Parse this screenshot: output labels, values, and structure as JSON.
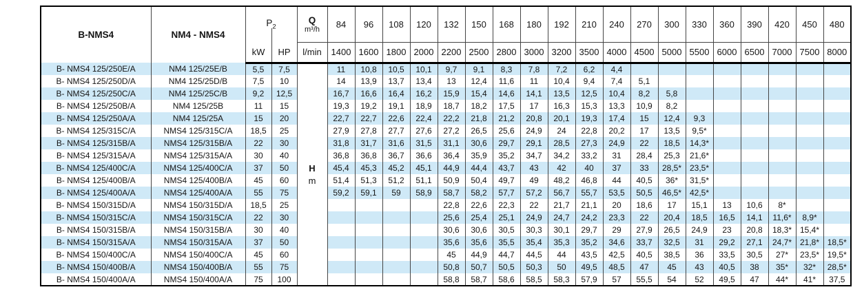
{
  "colors": {
    "stripe_blue": "#cfe9f7",
    "grid_line": "#444444",
    "heavy_line": "#000000"
  },
  "table": {
    "col1_header": "B-NMS4",
    "col2_header": "NM4 - NMS4",
    "p2": {
      "main": "P",
      "sub": "2"
    },
    "kw_label": "kW",
    "hp_label": "HP",
    "q_label": "Q",
    "q_unit": "m³/h",
    "lmin_label": "l/min",
    "h_label": "H",
    "m_label": "m",
    "flow_m3h": [
      "84",
      "96",
      "108",
      "120",
      "132",
      "150",
      "168",
      "180",
      "192",
      "210",
      "240",
      "270",
      "300",
      "330",
      "360",
      "390",
      "420",
      "450",
      "480"
    ],
    "flow_lmin": [
      "1400",
      "1600",
      "1800",
      "2000",
      "2200",
      "2500",
      "2800",
      "3000",
      "3200",
      "3500",
      "4000",
      "4500",
      "5000",
      "5500",
      "6000",
      "6500",
      "7000",
      "7500",
      "8000"
    ],
    "rows": [
      {
        "bnms4": "B- NMS4 125/250E/A",
        "nm4": "NM4 125/25E/B",
        "kw": "5,5",
        "hp": "7,5",
        "lmin": "",
        "values": [
          "11",
          "10,8",
          "10,5",
          "10,1",
          "9,7",
          "9,1",
          "8,3",
          "7,8",
          "7,2",
          "6,2",
          "4,4",
          "",
          "",
          "",
          "",
          "",
          "",
          "",
          ""
        ]
      },
      {
        "bnms4": "B- NMS4 125/250D/A",
        "nm4": "NM4 125/25D/B",
        "kw": "7,5",
        "hp": "10",
        "lmin": "",
        "values": [
          "14",
          "13,9",
          "13,7",
          "13,4",
          "13",
          "12,4",
          "11,6",
          "11",
          "10,4",
          "9,4",
          "7,4",
          "5,1",
          "",
          "",
          "",
          "",
          "",
          "",
          ""
        ]
      },
      {
        "bnms4": "B- NMS4 125/250C/A",
        "nm4": "NM4 125/25C/B",
        "kw": "9,2",
        "hp": "12,5",
        "lmin": "",
        "values": [
          "16,7",
          "16,6",
          "16,4",
          "16,2",
          "15,9",
          "15,4",
          "14,6",
          "14,1",
          "13,5",
          "12,5",
          "10,4",
          "8,2",
          "5,8",
          "",
          "",
          "",
          "",
          "",
          ""
        ]
      },
      {
        "bnms4": "B- NMS4 125/250B/A",
        "nm4": "NM4 125/25B",
        "kw": "11",
        "hp": "15",
        "lmin": "",
        "values": [
          "19,3",
          "19,2",
          "19,1",
          "18,9",
          "18,7",
          "18,2",
          "17,5",
          "17",
          "16,3",
          "15,3",
          "13,3",
          "10,9",
          "8,2",
          "",
          "",
          "",
          "",
          "",
          ""
        ]
      },
      {
        "bnms4": "B- NMS4 125/250A/A",
        "nm4": "NM4 125/25A",
        "kw": "15",
        "hp": "20",
        "lmin": "",
        "values": [
          "22,7",
          "22,7",
          "22,6",
          "22,4",
          "22,2",
          "21,8",
          "21,2",
          "20,8",
          "20,1",
          "19,3",
          "17,4",
          "15",
          "12,4",
          "9,3",
          "",
          "",
          "",
          "",
          ""
        ]
      },
      {
        "bnms4": "B- NMS4 125/315C/A",
        "nm4": "NMS4 125/315C/A",
        "kw": "18,5",
        "hp": "25",
        "lmin": "",
        "values": [
          "27,9",
          "27,8",
          "27,7",
          "27,6",
          "27,2",
          "26,5",
          "25,6",
          "24,9",
          "24",
          "22,8",
          "20,2",
          "17",
          "13,5",
          "9,5*",
          "",
          "",
          "",
          "",
          ""
        ]
      },
      {
        "bnms4": "B- NMS4 125/315B/A",
        "nm4": "NMS4 125/315B/A",
        "kw": "22",
        "hp": "30",
        "lmin": "",
        "values": [
          "31,8",
          "31,7",
          "31,6",
          "31,5",
          "31,1",
          "30,6",
          "29,7",
          "29,1",
          "28,5",
          "27,3",
          "24,9",
          "22",
          "18,5",
          "14,3*",
          "",
          "",
          "",
          "",
          ""
        ]
      },
      {
        "bnms4": "B- NMS4 125/315A/A",
        "nm4": "NMS4 125/315A/A",
        "kw": "30",
        "hp": "40",
        "lmin": "",
        "values": [
          "36,8",
          "36,8",
          "36,7",
          "36,6",
          "36,4",
          "35,9",
          "35,2",
          "34,7",
          "34,2",
          "33,2",
          "31",
          "28,4",
          "25,3",
          "21,6*",
          "",
          "",
          "",
          "",
          ""
        ]
      },
      {
        "bnms4": "B- NMS4 125/400C/A",
        "nm4": "NMS4 125/400C/A",
        "kw": "37",
        "hp": "50",
        "lmin": "H",
        "values": [
          "45,4",
          "45,3",
          "45,2",
          "45,1",
          "44,9",
          "44,4",
          "43,7",
          "43",
          "42",
          "40",
          "37",
          "33",
          "28,5*",
          "23,5*",
          "",
          "",
          "",
          "",
          ""
        ]
      },
      {
        "bnms4": "B- NMS4 125/400B/A",
        "nm4": "NMS4 125/400B/A",
        "kw": "45",
        "hp": "60",
        "lmin": "m",
        "values": [
          "51,4",
          "51,3",
          "51,2",
          "51,1",
          "50,9",
          "50,4",
          "49,7",
          "49",
          "48,2",
          "46,8",
          "44",
          "40,5",
          "36*",
          "31,5*",
          "",
          "",
          "",
          "",
          ""
        ]
      },
      {
        "bnms4": "B- NMS4 125/400A/A",
        "nm4": "NMS4 125/400A/A",
        "kw": "55",
        "hp": "75",
        "lmin": "",
        "values": [
          "59,2",
          "59,1",
          "59",
          "58,9",
          "58,7",
          "58,2",
          "57,7",
          "57,2",
          "56,7",
          "55,7",
          "53,5",
          "50,5",
          "46,5*",
          "42,5*",
          "",
          "",
          "",
          "",
          ""
        ]
      },
      {
        "bnms4": "B- NMS4 150/315D/A",
        "nm4": "NMS4 150/315D/A",
        "kw": "18,5",
        "hp": "25",
        "lmin": "",
        "values": [
          "",
          "",
          "",
          "",
          "22,8",
          "22,6",
          "22,3",
          "22",
          "21,7",
          "21,1",
          "20",
          "18,6",
          "17",
          "15,1",
          "13",
          "10,6",
          "8*",
          "",
          ""
        ]
      },
      {
        "bnms4": "B- NMS4 150/315C/A",
        "nm4": "NMS4 150/315C/A",
        "kw": "22",
        "hp": "30",
        "lmin": "",
        "values": [
          "",
          "",
          "",
          "",
          "25,6",
          "25,4",
          "25,1",
          "24,9",
          "24,7",
          "24,2",
          "23,3",
          "22",
          "20,4",
          "18,5",
          "16,5",
          "14,1",
          "11,6*",
          "8,9*",
          ""
        ]
      },
      {
        "bnms4": "B- NMS4 150/315B/A",
        "nm4": "NMS4 150/315B/A",
        "kw": "30",
        "hp": "40",
        "lmin": "",
        "values": [
          "",
          "",
          "",
          "",
          "30,6",
          "30,6",
          "30,5",
          "30,3",
          "30,1",
          "29,7",
          "29",
          "27,9",
          "26,5",
          "24,9",
          "23",
          "20,8",
          "18,3*",
          "15,4*",
          ""
        ]
      },
      {
        "bnms4": "B- NMS4 150/315A/A",
        "nm4": "NMS4 150/315A/A",
        "kw": "37",
        "hp": "50",
        "lmin": "",
        "values": [
          "",
          "",
          "",
          "",
          "35,6",
          "35,6",
          "35,5",
          "35,4",
          "35,3",
          "35,2",
          "34,6",
          "33,7",
          "32,5",
          "31",
          "29,2",
          "27,1",
          "24,7*",
          "21,8*",
          "18,5*"
        ]
      },
      {
        "bnms4": "B- NMS4 150/400C/A",
        "nm4": "NMS4 150/400C/A",
        "kw": "45",
        "hp": "60",
        "lmin": "",
        "values": [
          "",
          "",
          "",
          "",
          "45",
          "44,9",
          "44,7",
          "44,5",
          "44",
          "43,5",
          "42,5",
          "40,5",
          "38,5",
          "36",
          "33,5",
          "30,5",
          "27*",
          "23,5*",
          "19,5*"
        ]
      },
      {
        "bnms4": "B- NMS4 150/400B/A",
        "nm4": "NMS4 150/400B/A",
        "kw": "55",
        "hp": "75",
        "lmin": "",
        "values": [
          "",
          "",
          "",
          "",
          "50,8",
          "50,7",
          "50,5",
          "50,3",
          "50",
          "49,5",
          "48,5",
          "47",
          "45",
          "43",
          "40,5",
          "38",
          "35*",
          "32*",
          "28,5*"
        ]
      },
      {
        "bnms4": "B- NMS4 150/400A/A",
        "nm4": "NMS4 150/400A/A",
        "kw": "75",
        "hp": "100",
        "lmin": "",
        "values": [
          "",
          "",
          "",
          "",
          "58,8",
          "58,7",
          "58,6",
          "58,5",
          "58,3",
          "57,9",
          "57",
          "55,5",
          "54",
          "52",
          "49,5",
          "47",
          "44*",
          "41*",
          "37,5"
        ]
      }
    ]
  }
}
